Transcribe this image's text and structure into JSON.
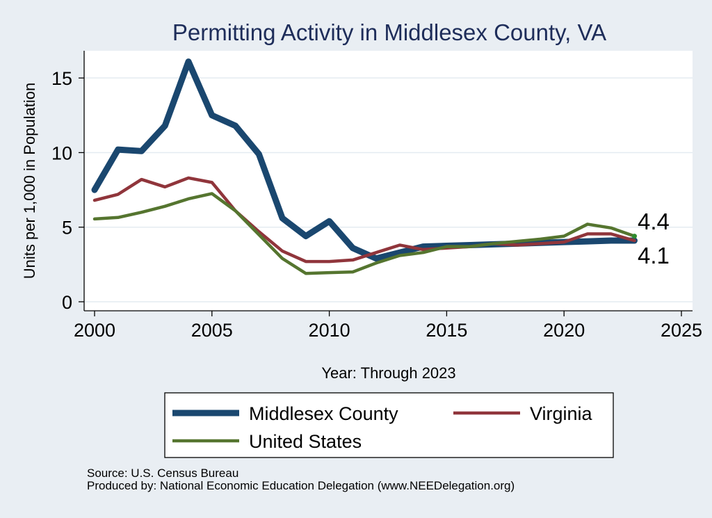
{
  "chart_data": {
    "type": "line",
    "title": "Permitting Activity in Middlesex County, VA",
    "xlabel": "Year: Through 2023",
    "ylabel": "Units per 1,000 in Population",
    "xlim": [
      2000,
      2025
    ],
    "ylim": [
      0,
      16.5
    ],
    "x_ticks": [
      2000,
      2005,
      2010,
      2015,
      2020,
      2025
    ],
    "y_ticks": [
      0,
      5,
      10,
      15
    ],
    "grid": "horizontal",
    "legend_position": "bottom",
    "x": [
      2000,
      2001,
      2002,
      2003,
      2004,
      2005,
      2006,
      2007,
      2008,
      2009,
      2010,
      2011,
      2012,
      2013,
      2014,
      2015,
      2016,
      2017,
      2018,
      2019,
      2020,
      2021,
      2022,
      2023
    ],
    "series": [
      {
        "name": "Middlesex County",
        "color": "#1a476f",
        "values": [
          7.5,
          10.2,
          10.1,
          11.8,
          16.1,
          12.5,
          11.8,
          9.9,
          5.6,
          4.4,
          5.4,
          3.6,
          2.9,
          3.3,
          3.7,
          3.75,
          3.8,
          3.85,
          3.9,
          3.95,
          4.0,
          4.05,
          4.1,
          4.1
        ]
      },
      {
        "name": "Virginia",
        "color": "#90353b",
        "values": [
          6.8,
          7.2,
          8.2,
          7.7,
          8.3,
          8.0,
          6.1,
          4.7,
          3.4,
          2.7,
          2.7,
          2.8,
          3.3,
          3.8,
          3.5,
          3.6,
          3.7,
          3.9,
          3.8,
          3.9,
          4.0,
          4.55,
          4.55,
          4.1
        ]
      },
      {
        "name": "United States",
        "color": "#55752f",
        "values": [
          5.55,
          5.65,
          6.0,
          6.4,
          6.9,
          7.25,
          6.1,
          4.5,
          2.9,
          1.9,
          1.95,
          2.0,
          2.6,
          3.1,
          3.3,
          3.7,
          3.7,
          3.9,
          4.05,
          4.2,
          4.4,
          5.2,
          4.95,
          4.4
        ]
      }
    ],
    "annotations": [
      {
        "text": "4.4",
        "series": "United States",
        "x": 2023,
        "y": 4.4
      },
      {
        "text": "4.1",
        "series": "Middlesex County",
        "x": 2023,
        "y": 4.1
      }
    ]
  },
  "footer": {
    "source": "Source: U.S. Census Bureau",
    "produced_by": "Produced by: National Economic Education Delegation (www.NEEDelegation.org)"
  }
}
